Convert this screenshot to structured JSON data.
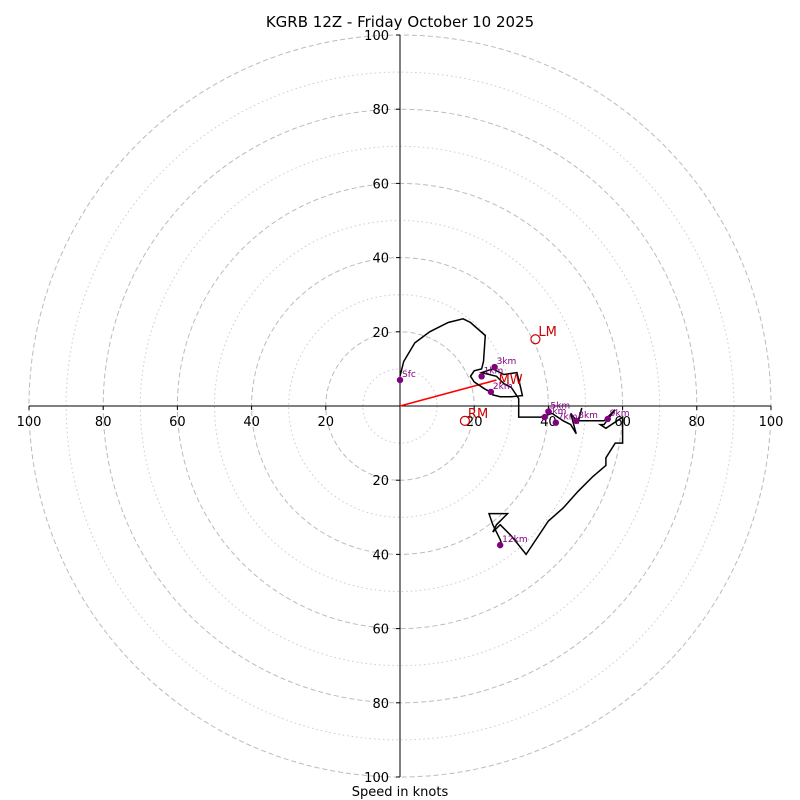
{
  "chart_data": {
    "type": "hodograph",
    "title": "KGRB 12Z - Friday October 10 2025",
    "xlabel": "Speed in knots",
    "range": [
      -100,
      100
    ],
    "ring_major": [
      20,
      40,
      60,
      80,
      100
    ],
    "ring_minor": [
      10,
      30,
      50,
      70,
      90
    ],
    "tick_labels": {
      "x": [
        {
          "v": -100,
          "t": "100"
        },
        {
          "v": -80,
          "t": "80"
        },
        {
          "v": -60,
          "t": "60"
        },
        {
          "v": -40,
          "t": "40"
        },
        {
          "v": -20,
          "t": "20"
        },
        {
          "v": 20,
          "t": "20"
        },
        {
          "v": 40,
          "t": "40"
        },
        {
          "v": 60,
          "t": "60"
        },
        {
          "v": 80,
          "t": "80"
        },
        {
          "v": 100,
          "t": "100"
        }
      ],
      "y": [
        {
          "v": 100,
          "t": "100"
        },
        {
          "v": 80,
          "t": "80"
        },
        {
          "v": 60,
          "t": "60"
        },
        {
          "v": 40,
          "t": "40"
        },
        {
          "v": 20,
          "t": "20"
        },
        {
          "v": -20,
          "t": "20"
        },
        {
          "v": -40,
          "t": "40"
        },
        {
          "v": -60,
          "t": "60"
        },
        {
          "v": -80,
          "t": "80"
        },
        {
          "v": -100,
          "t": "100"
        }
      ]
    },
    "trace": [
      [
        0,
        8
      ],
      [
        1,
        12
      ],
      [
        4,
        17
      ],
      [
        8,
        20
      ],
      [
        13,
        22.5
      ],
      [
        17,
        23.5
      ],
      [
        19,
        22.5
      ],
      [
        23,
        19
      ],
      [
        22.5,
        12
      ],
      [
        22,
        10
      ],
      [
        20,
        9.5
      ],
      [
        19,
        8
      ],
      [
        20,
        6.5
      ],
      [
        23,
        4.5
      ],
      [
        25,
        3.5
      ],
      [
        25,
        3
      ],
      [
        27,
        2.5
      ],
      [
        30,
        2.5
      ],
      [
        33,
        2.8
      ],
      [
        32.5,
        5
      ],
      [
        31.5,
        9
      ],
      [
        28,
        8.5
      ],
      [
        25,
        10
      ],
      [
        22,
        9
      ],
      [
        26,
        8
      ],
      [
        28,
        6
      ],
      [
        30,
        5
      ],
      [
        32,
        2
      ],
      [
        32,
        -3
      ],
      [
        38,
        -3
      ],
      [
        41,
        -2
      ],
      [
        44,
        -4
      ],
      [
        46,
        -5
      ],
      [
        47.5,
        -7.5
      ],
      [
        46,
        -2
      ],
      [
        48,
        -4.5
      ],
      [
        49,
        -0.5
      ],
      [
        48,
        -4
      ],
      [
        55,
        -4
      ],
      [
        58,
        -1
      ],
      [
        55,
        -5
      ],
      [
        54,
        -5
      ],
      [
        55.5,
        -6
      ],
      [
        60,
        -3
      ],
      [
        60,
        -10
      ],
      [
        58,
        -10
      ],
      [
        55.5,
        -14
      ],
      [
        55.5,
        -16
      ],
      [
        52,
        -19
      ],
      [
        48,
        -23
      ],
      [
        44,
        -27.5
      ],
      [
        40,
        -31
      ],
      [
        34,
        -40
      ],
      [
        30,
        -35
      ],
      [
        27,
        -32
      ],
      [
        25,
        -34
      ],
      [
        26,
        -32
      ],
      [
        29,
        -29
      ],
      [
        24,
        -29
      ],
      [
        25,
        -32
      ],
      [
        27,
        -36
      ],
      [
        27.5,
        -37.5
      ]
    ],
    "height_markers": [
      {
        "label": "Sfc",
        "u": 0,
        "v": 7
      },
      {
        "label": "1km",
        "u": 22,
        "v": 8
      },
      {
        "label": "3km",
        "u": 25.5,
        "v": 10.5
      },
      {
        "label": "2km",
        "u": 24.5,
        "v": 3.8
      },
      {
        "label": "5km",
        "u": 40,
        "v": -1.5
      },
      {
        "label": "6km",
        "u": 39,
        "v": -3
      },
      {
        "label": "7km",
        "u": 42,
        "v": -4.5
      },
      {
        "label": "8km",
        "u": 47.5,
        "v": -4
      },
      {
        "label": "9km",
        "u": 56,
        "v": -3.5
      },
      {
        "label": "12km",
        "u": 27,
        "v": -37.5
      }
    ],
    "storm_motion": [
      {
        "label": "LM",
        "u": 36.5,
        "v": 18
      },
      {
        "label": "RM",
        "u": 17.5,
        "v": -4
      },
      {
        "label": "MW",
        "u": 25.5,
        "v": 7
      }
    ],
    "shear_vector": {
      "from": [
        0,
        0
      ],
      "to": [
        26,
        7
      ]
    },
    "colors": {
      "trace": "#000000",
      "marker": "#800080",
      "storm_motion": "#cc0000",
      "shear": "#ff0000",
      "grid": "#bbbbbb"
    }
  }
}
